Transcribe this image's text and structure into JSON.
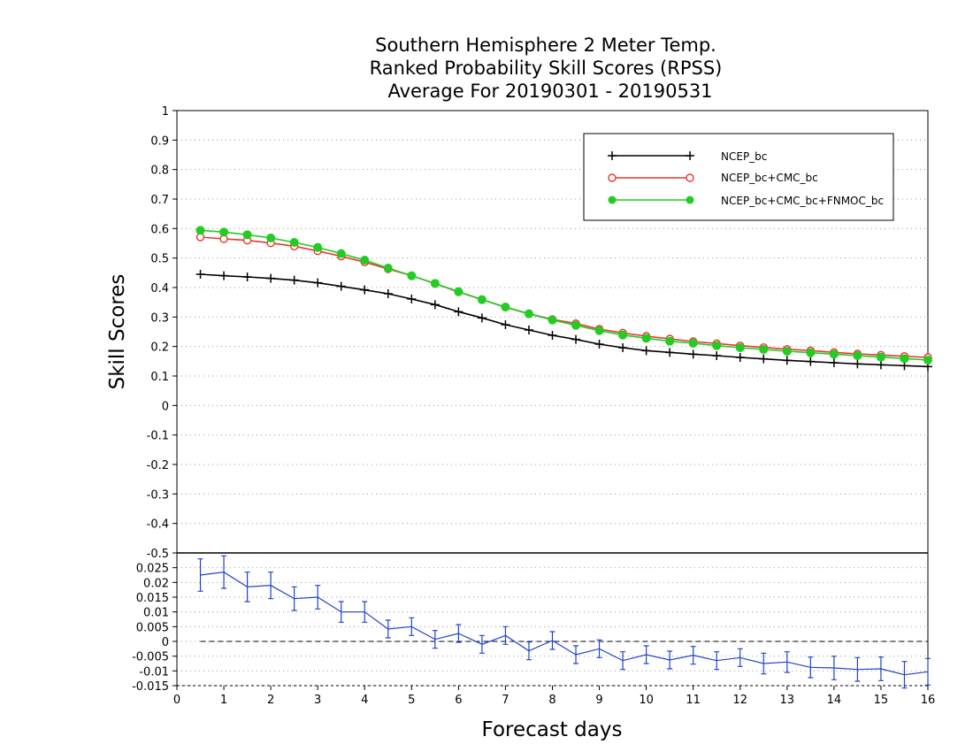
{
  "colors": {
    "ncep": "#000000",
    "ncep_cmc": "#e8392f",
    "ncep_cmc_fnmoc": "#22cc22",
    "diff": "#2244cc"
  },
  "chart_data": [
    {
      "type": "line",
      "title": [
        "Southern Hemisphere 2 Meter Temp.",
        "Ranked Probability Skill Scores (RPSS)",
        "Average For 20190301 - 20190531"
      ],
      "xlabel": "Forecast days",
      "ylabel": "Skill Scores",
      "xlim": [
        0,
        16
      ],
      "ylim": [
        -0.5,
        1
      ],
      "grid": true,
      "legend_placement": "top-right",
      "xticks": [
        "0",
        "1",
        "2",
        "3",
        "4",
        "5",
        "6",
        "7",
        "8",
        "9",
        "10",
        "11",
        "12",
        "13",
        "14",
        "15",
        "16"
      ],
      "yticks": [
        "-0.5",
        "-0.4",
        "-0.3",
        "-0.2",
        "-0.1",
        "0",
        "0.1",
        "0.2",
        "0.3",
        "0.4",
        "0.5",
        "0.6",
        "0.7",
        "0.8",
        "0.9",
        "1"
      ],
      "x": [
        0.5,
        1,
        1.5,
        2,
        2.5,
        3,
        3.5,
        4,
        4.5,
        5,
        5.5,
        6,
        6.5,
        7,
        7.5,
        8,
        8.5,
        9,
        9.5,
        10,
        10.5,
        11,
        11.5,
        12,
        12.5,
        13,
        13.5,
        14,
        14.5,
        15,
        15.5,
        16
      ],
      "series": [
        {
          "name": "NCEP_bc",
          "marker": "plus",
          "color_key": "ncep",
          "values": [
            0.445,
            0.44,
            0.436,
            0.431,
            0.425,
            0.416,
            0.404,
            0.392,
            0.379,
            0.361,
            0.342,
            0.318,
            0.297,
            0.274,
            0.256,
            0.238,
            0.224,
            0.208,
            0.196,
            0.186,
            0.18,
            0.174,
            0.169,
            0.163,
            0.158,
            0.153,
            0.149,
            0.145,
            0.141,
            0.138,
            0.135,
            0.132
          ]
        },
        {
          "name": "NCEP_bc+CMC_bc",
          "marker": "open-circle",
          "color_key": "ncep_cmc",
          "values": [
            0.571,
            0.565,
            0.56,
            0.551,
            0.54,
            0.524,
            0.506,
            0.486,
            0.463,
            0.44,
            0.413,
            0.385,
            0.359,
            0.333,
            0.311,
            0.292,
            0.278,
            0.259,
            0.246,
            0.235,
            0.226,
            0.217,
            0.21,
            0.203,
            0.197,
            0.191,
            0.186,
            0.18,
            0.175,
            0.171,
            0.167,
            0.163
          ]
        },
        {
          "name": "NCEP_bc+CMC_bc+FNMOC_bc",
          "marker": "filled-circle",
          "color_key": "ncep_cmc_fnmoc",
          "values": [
            0.594,
            0.588,
            0.579,
            0.568,
            0.553,
            0.536,
            0.515,
            0.493,
            0.466,
            0.44,
            0.414,
            0.386,
            0.359,
            0.334,
            0.311,
            0.29,
            0.272,
            0.254,
            0.239,
            0.228,
            0.218,
            0.211,
            0.203,
            0.196,
            0.19,
            0.184,
            0.179,
            0.174,
            0.169,
            0.164,
            0.159,
            0.154
          ]
        }
      ]
    },
    {
      "type": "line",
      "xlim": [
        0,
        16
      ],
      "ylim": [
        -0.015,
        0.03
      ],
      "yticks": [
        "-0.015",
        "-0.01",
        "-0.005",
        "0",
        "0.005",
        "0.01",
        "0.015",
        "0.02",
        "0.025"
      ],
      "zero_line": true,
      "x": [
        0.5,
        1,
        1.5,
        2,
        2.5,
        3,
        3.5,
        4,
        4.5,
        5,
        5.5,
        6,
        6.5,
        7,
        7.5,
        8,
        8.5,
        9,
        9.5,
        10,
        10.5,
        11,
        11.5,
        12,
        12.5,
        13,
        13.5,
        14,
        14.5,
        15,
        15.5,
        16
      ],
      "series": [
        {
          "name": "",
          "marker": "errorbar",
          "color_key": "diff",
          "values": [
            0.0225,
            0.0235,
            0.0185,
            0.019,
            0.0145,
            0.015,
            0.01,
            0.01,
            0.0042,
            0.005,
            0.0007,
            0.0027,
            -0.001,
            0.002,
            -0.0032,
            0.0003,
            -0.0045,
            -0.0025,
            -0.0065,
            -0.0045,
            -0.0063,
            -0.0047,
            -0.0065,
            -0.0055,
            -0.0075,
            -0.007,
            -0.0088,
            -0.009,
            -0.0095,
            -0.0093,
            -0.0113,
            -0.0103
          ],
          "error": [
            0.0055,
            0.0055,
            0.005,
            0.0045,
            0.004,
            0.004,
            0.0035,
            0.0035,
            0.003,
            0.003,
            0.003,
            0.003,
            0.003,
            0.003,
            0.003,
            0.003,
            0.003,
            0.003,
            0.003,
            0.003,
            0.003,
            0.003,
            0.003,
            0.003,
            0.0035,
            0.0035,
            0.0035,
            0.004,
            0.004,
            0.004,
            0.0045,
            0.0045
          ]
        }
      ]
    }
  ]
}
